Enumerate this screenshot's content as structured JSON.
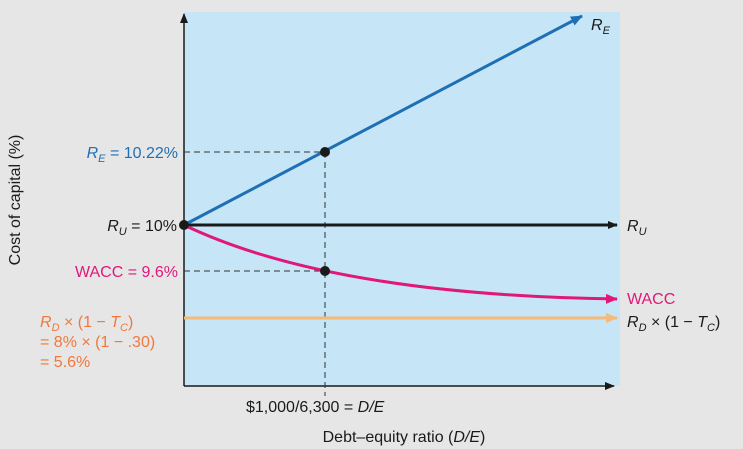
{
  "colors": {
    "background": "#e6e6e6",
    "plot_area": "#c6e6f7",
    "re_line": "#1f6fb5",
    "ru_line": "#1a1a1a",
    "wacc_line": "#e0187a",
    "rd_line": "#f5b97a",
    "rd_label": "#f0783c"
  },
  "labels": {
    "re_value": [
      "R",
      "E",
      " = 10.22%"
    ],
    "ru_value": [
      "R",
      "U",
      " = 10%"
    ],
    "wacc_value": "WACC = 9.6%",
    "rd_value_line1": [
      "R",
      "D",
      " × (1 − ",
      "T",
      "C",
      ")"
    ],
    "rd_value_line2": "= 8% × (1 − .30)",
    "rd_value_line3": "= 5.6%",
    "re_end": [
      "R",
      "E"
    ],
    "ru_end": [
      "R",
      "U"
    ],
    "wacc_end": "WACC",
    "rd_end": [
      "R",
      "D",
      " × (1 − ",
      "T",
      "C",
      ")"
    ],
    "x_point": [
      "$1,000/6,300 = ",
      "D/E"
    ]
  },
  "chart_data": {
    "type": "line",
    "xlabel": [
      "Debt–equity ratio (",
      "D/E",
      ")"
    ],
    "ylabel": "Cost of capital (%)",
    "x_marked": 0.1587,
    "series": [
      {
        "name": "R_E",
        "x": [
          0,
          0.1587,
          0.58
        ],
        "values": [
          10,
          10.22,
          10.84
        ]
      },
      {
        "name": "R_U",
        "x": [
          0,
          0.65
        ],
        "values": [
          10,
          10
        ]
      },
      {
        "name": "WACC",
        "x": [
          0,
          0.1587,
          0.3,
          0.45,
          0.62
        ],
        "values": [
          10,
          9.6,
          9.38,
          9.3,
          9.29
        ]
      },
      {
        "name": "R_D × (1 − T_C)",
        "x": [
          0,
          0.62
        ],
        "values": [
          5.6,
          5.6
        ]
      }
    ],
    "points": [
      {
        "x": 0,
        "y": 10
      },
      {
        "x": 0.1587,
        "y": 10.22
      },
      {
        "x": 0.1587,
        "y": 9.6
      }
    ],
    "grid": false
  }
}
